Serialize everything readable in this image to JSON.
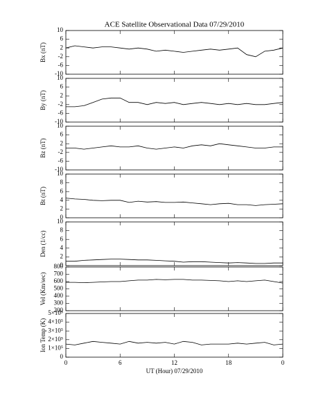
{
  "chart_data": [
    {
      "type": "line",
      "title": "ACE Satellite Observational Data   07/29/2010",
      "ylabel": "Bx (nT)",
      "xlim": [
        0,
        24
      ],
      "ylim": [
        -10,
        10
      ],
      "yticks": [
        -10,
        -6,
        -2,
        2,
        6,
        10
      ],
      "x": [
        0,
        1,
        2,
        3,
        4,
        5,
        6,
        7,
        8,
        9,
        10,
        11,
        12,
        13,
        14,
        15,
        16,
        17,
        18,
        19,
        20,
        21,
        22,
        23,
        24
      ],
      "series": [
        {
          "color": "#000000",
          "values": [
            2,
            3,
            2.5,
            2,
            2.5,
            2.5,
            2,
            1.5,
            2,
            1.5,
            0.5,
            1,
            0.5,
            0,
            0.5,
            1,
            1.5,
            1,
            1.5,
            2,
            -1,
            -2,
            0.5,
            1,
            2
          ]
        }
      ]
    },
    {
      "type": "line",
      "ylabel": "By (nT)",
      "xlim": [
        0,
        24
      ],
      "ylim": [
        -10,
        10
      ],
      "yticks": [
        -10,
        -6,
        -2,
        2,
        6,
        10
      ],
      "x": [
        0,
        1,
        2,
        3,
        4,
        5,
        6,
        7,
        8,
        9,
        10,
        11,
        12,
        13,
        14,
        15,
        16,
        17,
        18,
        19,
        20,
        21,
        22,
        23,
        24
      ],
      "series": [
        {
          "color": "#000000",
          "values": [
            -3,
            -3,
            -2.5,
            -1,
            0.5,
            1,
            1,
            -1,
            -1,
            -2,
            -1,
            -1.5,
            -1,
            -2,
            -1.5,
            -1,
            -1.5,
            -2,
            -1.5,
            -2,
            -1.5,
            -2,
            -2,
            -1.5,
            -1
          ]
        }
      ]
    },
    {
      "type": "line",
      "ylabel": "Bz (nT)",
      "xlim": [
        0,
        24
      ],
      "ylim": [
        -10,
        10
      ],
      "yticks": [
        -10,
        -6,
        -2,
        2,
        6,
        10
      ],
      "x": [
        0,
        1,
        2,
        3,
        4,
        5,
        6,
        7,
        8,
        9,
        10,
        11,
        12,
        13,
        14,
        15,
        16,
        17,
        18,
        19,
        20,
        21,
        22,
        23,
        24
      ],
      "series": [
        {
          "color": "#000000",
          "values": [
            0,
            0,
            -0.5,
            0,
            0.5,
            1,
            0.5,
            0.5,
            1,
            0,
            -0.5,
            0,
            0.5,
            0,
            1,
            1.5,
            1,
            2,
            1.5,
            1,
            0.5,
            0,
            0,
            0.5,
            0.5
          ]
        }
      ]
    },
    {
      "type": "line",
      "ylabel": "Bt (nT)",
      "xlim": [
        0,
        24
      ],
      "ylim": [
        0,
        10
      ],
      "yticks": [
        0,
        2,
        4,
        6,
        8,
        10
      ],
      "x": [
        0,
        1,
        2,
        3,
        4,
        5,
        6,
        7,
        8,
        9,
        10,
        11,
        12,
        13,
        14,
        15,
        16,
        17,
        18,
        19,
        20,
        21,
        22,
        23,
        24
      ],
      "series": [
        {
          "color": "#000000",
          "values": [
            4.5,
            4.3,
            4.2,
            4.0,
            3.9,
            4,
            4,
            3.5,
            3.8,
            3.6,
            3.7,
            3.5,
            3.5,
            3.6,
            3.4,
            3.2,
            3.0,
            3.2,
            3.3,
            3.0,
            3.0,
            2.8,
            3.0,
            3.1,
            3.2
          ]
        }
      ]
    },
    {
      "type": "line",
      "ylabel": "Den (1/cc)",
      "xlim": [
        0,
        24
      ],
      "ylim": [
        0,
        10
      ],
      "yticks": [
        0,
        2,
        4,
        6,
        8,
        10
      ],
      "x": [
        0,
        1,
        2,
        3,
        4,
        5,
        6,
        7,
        8,
        9,
        10,
        11,
        12,
        13,
        14,
        15,
        16,
        17,
        18,
        19,
        20,
        21,
        22,
        23,
        24
      ],
      "series": [
        {
          "color": "#000000",
          "values": [
            1,
            1,
            1.2,
            1.3,
            1.4,
            1.5,
            1.5,
            1.4,
            1.3,
            1.3,
            1.2,
            1.1,
            1,
            0.8,
            0.9,
            0.9,
            0.8,
            0.7,
            0.6,
            0.7,
            0.6,
            0.5,
            0.5,
            0.6,
            0.6
          ]
        }
      ]
    },
    {
      "type": "line",
      "ylabel": "Vel (Km/sec)",
      "xlim": [
        0,
        24
      ],
      "ylim": [
        200,
        800
      ],
      "yticks": [
        200,
        300,
        400,
        500,
        600,
        700,
        800
      ],
      "x": [
        0,
        1,
        2,
        3,
        4,
        5,
        6,
        7,
        8,
        9,
        10,
        11,
        12,
        13,
        14,
        15,
        16,
        17,
        18,
        19,
        20,
        21,
        22,
        23,
        24
      ],
      "series": [
        {
          "color": "#000000",
          "values": [
            590,
            590,
            585,
            590,
            595,
            600,
            600,
            610,
            620,
            620,
            630,
            625,
            630,
            630,
            620,
            620,
            615,
            610,
            600,
            610,
            600,
            610,
            620,
            600,
            580
          ]
        }
      ]
    },
    {
      "type": "line",
      "ylabel": "Ion Temp (K)",
      "xlabel": "UT (Hour)   07/29/2010",
      "xlim": [
        0,
        24
      ],
      "ylim": [
        0,
        500000
      ],
      "yticks": [
        0,
        {
          "value": 100000,
          "label": "1×10⁵"
        },
        {
          "value": 200000,
          "label": "2×10⁵"
        },
        {
          "value": 300000,
          "label": "3×10⁵"
        },
        {
          "value": 400000,
          "label": "4×10⁵"
        },
        {
          "value": 500000,
          "label": "5×10⁵"
        }
      ],
      "xticks": [
        0,
        6,
        12,
        18,
        {
          "value": 24,
          "label": "0"
        }
      ],
      "x": [
        0,
        1,
        2,
        3,
        4,
        5,
        6,
        7,
        8,
        9,
        10,
        11,
        12,
        13,
        14,
        15,
        16,
        17,
        18,
        19,
        20,
        21,
        22,
        23,
        24
      ],
      "series": [
        {
          "color": "#000000",
          "values": [
            150000,
            140000,
            160000,
            180000,
            170000,
            160000,
            150000,
            180000,
            160000,
            170000,
            160000,
            170000,
            150000,
            180000,
            170000,
            140000,
            150000,
            150000,
            150000,
            160000,
            150000,
            160000,
            170000,
            140000,
            150000
          ]
        }
      ]
    }
  ]
}
